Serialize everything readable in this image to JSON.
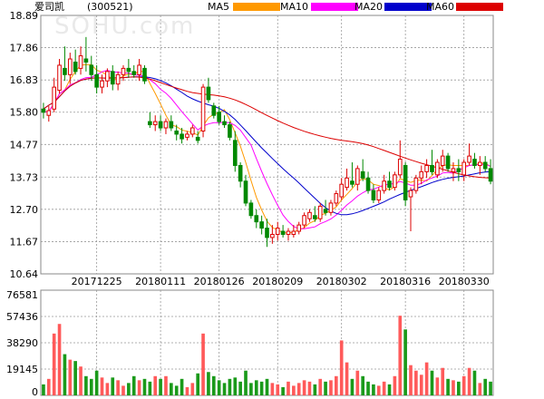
{
  "header": {
    "name": "爱司凯",
    "code": "(300521)",
    "ma_labels": [
      {
        "label": "MA5",
        "color": "#ff9900"
      },
      {
        "label": "MA10",
        "color": "#ff00ff"
      },
      {
        "label": "MA20",
        "color": "#0000cc"
      },
      {
        "label": "MA60",
        "color": "#dd0000"
      }
    ]
  },
  "watermark": "SOHU.com",
  "chart_data": [
    {
      "type": "candlestick",
      "ylim": [
        10.64,
        18.89
      ],
      "y_ticks": [
        18.89,
        17.86,
        16.83,
        15.8,
        14.77,
        13.73,
        12.7,
        11.67,
        10.64
      ],
      "x_tick_labels": [
        "20171225",
        "20180111",
        "20180126",
        "20180209",
        "20180302",
        "20180316",
        "20180330"
      ],
      "x_tick_index": [
        10,
        22,
        33,
        44,
        56,
        68,
        79
      ],
      "colors": {
        "up": "#dd0000",
        "down": "#008800"
      },
      "candles": [
        [
          15.9,
          16.1,
          15.6,
          15.8
        ],
        [
          15.7,
          16.0,
          15.5,
          15.85
        ],
        [
          15.9,
          16.9,
          15.8,
          16.6
        ],
        [
          16.5,
          17.5,
          16.4,
          17.3
        ],
        [
          17.2,
          17.9,
          16.8,
          17.0
        ],
        [
          17.0,
          17.7,
          16.7,
          17.5
        ],
        [
          17.4,
          17.8,
          17.0,
          17.1
        ],
        [
          17.2,
          17.9,
          17.0,
          17.6
        ],
        [
          17.5,
          18.2,
          17.1,
          17.4
        ],
        [
          17.3,
          17.6,
          16.8,
          17.0
        ],
        [
          17.0,
          17.3,
          16.4,
          16.6
        ],
        [
          16.6,
          17.0,
          16.4,
          16.8
        ],
        [
          16.8,
          17.2,
          16.6,
          17.1
        ],
        [
          17.1,
          17.3,
          16.5,
          16.7
        ],
        [
          16.7,
          17.1,
          16.5,
          17.0
        ],
        [
          17.0,
          17.3,
          16.8,
          17.2
        ],
        [
          17.2,
          17.5,
          16.9,
          17.1
        ],
        [
          17.1,
          17.3,
          16.9,
          17.0
        ],
        [
          17.0,
          17.5,
          16.8,
          17.3
        ],
        [
          17.2,
          17.3,
          16.7,
          16.8
        ],
        [
          15.5,
          15.8,
          15.3,
          15.4
        ],
        [
          15.4,
          15.7,
          15.2,
          15.5
        ],
        [
          15.5,
          15.7,
          15.2,
          15.3
        ],
        [
          15.3,
          15.6,
          15.1,
          15.5
        ],
        [
          15.5,
          15.7,
          15.2,
          15.3
        ],
        [
          15.2,
          15.4,
          14.9,
          15.1
        ],
        [
          15.1,
          15.3,
          14.8,
          14.95
        ],
        [
          15.0,
          15.2,
          14.9,
          15.1
        ],
        [
          15.1,
          15.4,
          15.0,
          15.3
        ],
        [
          15.0,
          15.2,
          14.8,
          14.9
        ],
        [
          15.2,
          16.7,
          15.0,
          16.6
        ],
        [
          16.6,
          16.9,
          16.1,
          16.2
        ],
        [
          16.0,
          16.1,
          15.6,
          15.7
        ],
        [
          15.8,
          16.0,
          15.4,
          15.5
        ],
        [
          15.5,
          15.7,
          15.3,
          15.4
        ],
        [
          15.4,
          15.5,
          14.9,
          15.0
        ],
        [
          14.9,
          15.2,
          13.9,
          14.1
        ],
        [
          14.1,
          14.2,
          13.4,
          13.6
        ],
        [
          13.6,
          13.8,
          12.8,
          12.9
        ],
        [
          12.9,
          13.0,
          12.4,
          12.5
        ],
        [
          12.5,
          12.7,
          12.1,
          12.3
        ],
        [
          12.3,
          12.5,
          11.9,
          12.1
        ],
        [
          12.1,
          12.4,
          11.5,
          11.8
        ],
        [
          11.8,
          12.2,
          11.6,
          11.9
        ],
        [
          11.9,
          12.3,
          11.7,
          12.1
        ],
        [
          12.0,
          12.2,
          11.8,
          11.9
        ],
        [
          11.9,
          12.1,
          11.7,
          12.0
        ],
        [
          11.9,
          12.2,
          11.8,
          12.0
        ],
        [
          12.0,
          12.3,
          11.9,
          12.2
        ],
        [
          12.2,
          12.6,
          12.1,
          12.5
        ],
        [
          12.4,
          12.7,
          12.3,
          12.6
        ],
        [
          12.5,
          12.8,
          12.3,
          12.4
        ],
        [
          12.4,
          12.9,
          12.3,
          12.8
        ],
        [
          12.7,
          13.0,
          12.5,
          12.6
        ],
        [
          12.6,
          13.0,
          12.5,
          12.9
        ],
        [
          12.9,
          13.3,
          12.8,
          13.2
        ],
        [
          13.1,
          13.7,
          13.0,
          13.5
        ],
        [
          13.4,
          14.0,
          13.3,
          13.7
        ],
        [
          13.6,
          14.2,
          13.4,
          13.5
        ],
        [
          13.5,
          14.1,
          13.3,
          14.0
        ],
        [
          13.9,
          14.3,
          13.6,
          13.7
        ],
        [
          13.7,
          13.9,
          13.2,
          13.3
        ],
        [
          13.3,
          13.5,
          12.9,
          13.0
        ],
        [
          13.0,
          13.4,
          12.9,
          13.3
        ],
        [
          13.3,
          13.8,
          13.2,
          13.6
        ],
        [
          13.6,
          13.9,
          13.3,
          13.4
        ],
        [
          13.4,
          13.9,
          13.3,
          13.8
        ],
        [
          13.8,
          14.9,
          13.7,
          14.3
        ],
        [
          14.1,
          14.2,
          12.8,
          13.0
        ],
        [
          13.1,
          13.4,
          12.0,
          13.3
        ],
        [
          13.3,
          13.8,
          13.2,
          13.7
        ],
        [
          13.7,
          14.1,
          13.5,
          13.9
        ],
        [
          13.9,
          14.3,
          13.7,
          14.1
        ],
        [
          14.1,
          14.6,
          13.8,
          13.9
        ],
        [
          13.8,
          14.3,
          13.7,
          14.2
        ],
        [
          14.1,
          14.6,
          13.9,
          14.4
        ],
        [
          14.4,
          14.5,
          13.9,
          14.0
        ],
        [
          13.9,
          14.2,
          13.6,
          14.0
        ],
        [
          14.0,
          14.3,
          13.6,
          13.9
        ],
        [
          13.8,
          14.3,
          13.6,
          14.2
        ],
        [
          14.2,
          14.8,
          14.1,
          14.4
        ],
        [
          14.3,
          14.5,
          14.0,
          14.1
        ],
        [
          14.1,
          14.4,
          13.8,
          14.2
        ],
        [
          14.2,
          14.4,
          13.9,
          14.0
        ],
        [
          14.0,
          14.3,
          13.5,
          13.6
        ]
      ]
    },
    {
      "type": "bar",
      "ylim": [
        0,
        76581
      ],
      "y_ticks": [
        76581,
        57436,
        38290,
        19145,
        0
      ],
      "volumes": [
        8000,
        12000,
        45000,
        52000,
        30000,
        26000,
        25000,
        21000,
        14000,
        12000,
        18000,
        13000,
        9000,
        13000,
        11000,
        7000,
        9000,
        14000,
        11000,
        12000,
        10000,
        14000,
        12000,
        14000,
        9000,
        7000,
        12000,
        6000,
        9000,
        16000,
        45000,
        17000,
        14000,
        11000,
        9000,
        12000,
        13000,
        10000,
        18000,
        9000,
        11000,
        10000,
        12000,
        9000,
        8000,
        6000,
        10000,
        7000,
        9000,
        11000,
        10000,
        8000,
        12000,
        10000,
        11000,
        14000,
        40000,
        24000,
        12000,
        18000,
        14000,
        10000,
        8000,
        7000,
        10000,
        8000,
        14000,
        58000,
        48000,
        22000,
        18000,
        15000,
        24000,
        18000,
        13000,
        20000,
        12000,
        11000,
        10000,
        14000,
        20000,
        18000,
        9000,
        12000,
        10000
      ]
    }
  ]
}
